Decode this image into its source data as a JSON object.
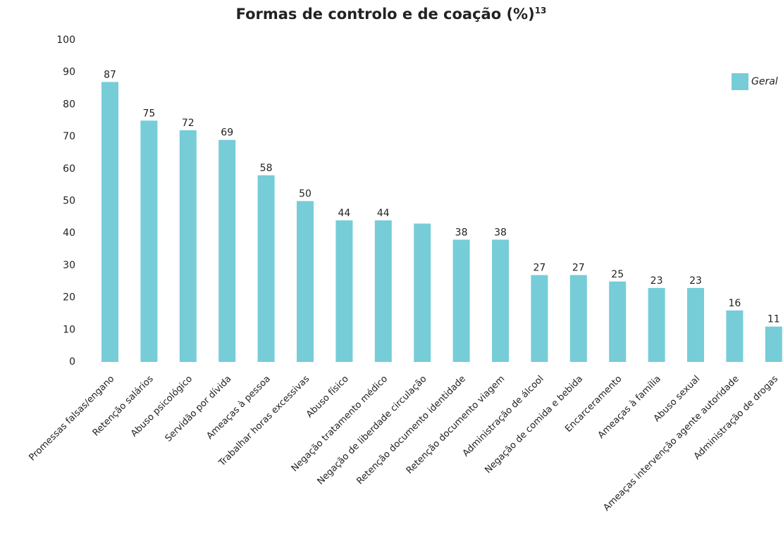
{
  "chart_data": {
    "type": "bar",
    "title": "Formas de controlo e de coação (%)",
    "title_note": "13",
    "categories": [
      "Promessas falsas/engano",
      "Retenção salários",
      "Abuso psicológico",
      "Servidão por dívida",
      "Ameaças à pessoa",
      "Trabalhar horas excessivas",
      "Abuso físico",
      "Negação tratamento médico",
      "Negação de liberdade circulação",
      "Retenção documento identidade",
      "Retenção documento viagem",
      "Administração de álcool",
      "Negação de comida e bebida",
      "Encarceramento",
      "Ameaças à família",
      "Abuso sexual",
      "Ameaças intervenção agente autoridade",
      "Administração de drogas"
    ],
    "series": [
      {
        "name": "Geral",
        "color": "#76cdd8",
        "values": [
          87,
          75,
          72,
          69,
          58,
          50,
          44,
          44,
          43,
          38,
          38,
          27,
          27,
          25,
          23,
          23,
          16,
          11
        ],
        "value_labels": [
          "87",
          "75",
          "72",
          "69",
          "58",
          "50",
          "44",
          "44",
          null,
          "38",
          "38",
          "27",
          "27",
          "25",
          "23",
          "23",
          "16",
          "11"
        ]
      }
    ],
    "ylim": [
      0,
      100
    ],
    "yticks": [
      0,
      10,
      20,
      30,
      40,
      50,
      60,
      70,
      80,
      90,
      100
    ],
    "grid": false,
    "legend": "top-right"
  }
}
